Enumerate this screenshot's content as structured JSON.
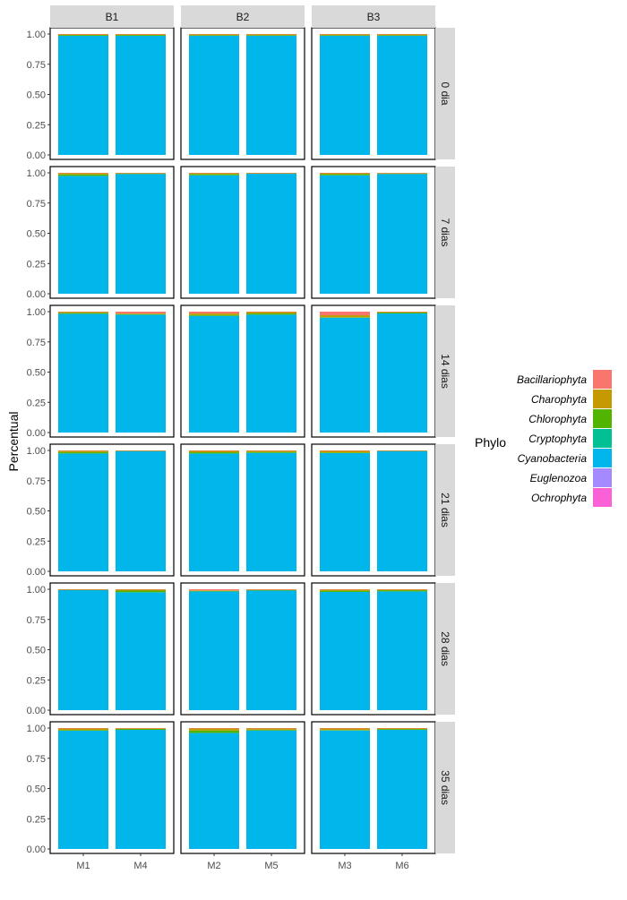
{
  "chart_data": {
    "type": "bar",
    "stacked": true,
    "xlabel": "",
    "ylabel": "Percentual",
    "ylim": [
      0,
      1
    ],
    "yticks": [
      "0.00",
      "0.25",
      "0.50",
      "0.75",
      "1.00"
    ],
    "column_facets": [
      {
        "label": "B1",
        "categories": [
          "M1",
          "M4"
        ]
      },
      {
        "label": "B2",
        "categories": [
          "M2",
          "M5"
        ]
      },
      {
        "label": "B3",
        "categories": [
          "M3",
          "M6"
        ]
      }
    ],
    "row_facets": [
      "0 dia",
      "7 dias",
      "14 dias",
      "21 dias",
      "28 dias",
      "35 dias"
    ],
    "legend": {
      "title": "Phylo",
      "position": "right",
      "entries": [
        {
          "name": "Bacillariophyta",
          "color": "#F8766D"
        },
        {
          "name": "Charophyta",
          "color": "#C49A00"
        },
        {
          "name": "Chlorophyta",
          "color": "#53B400"
        },
        {
          "name": "Cryptophyta",
          "color": "#00C094"
        },
        {
          "name": "Cyanobacteria",
          "color": "#00B6EB"
        },
        {
          "name": "Euglenozoa",
          "color": "#A58AFF"
        },
        {
          "name": "Ochrophyta",
          "color": "#FB61D7"
        }
      ]
    },
    "series_order": [
      "Cyanobacteria",
      "Chlorophyta",
      "Charophyta",
      "Bacillariophyta"
    ],
    "bars": [
      {
        "row": "0 dia",
        "col": "B1",
        "category": "M1",
        "values": {
          "Cyanobacteria": 0.985,
          "Chlorophyta": 0.007,
          "Charophyta": 0.005,
          "Bacillariophyta": 0.003
        }
      },
      {
        "row": "0 dia",
        "col": "B1",
        "category": "M4",
        "values": {
          "Cyanobacteria": 0.985,
          "Chlorophyta": 0.007,
          "Charophyta": 0.005,
          "Bacillariophyta": 0.003
        }
      },
      {
        "row": "0 dia",
        "col": "B2",
        "category": "M2",
        "values": {
          "Cyanobacteria": 0.985,
          "Chlorophyta": 0.006,
          "Charophyta": 0.006,
          "Bacillariophyta": 0.003
        }
      },
      {
        "row": "0 dia",
        "col": "B2",
        "category": "M5",
        "values": {
          "Cyanobacteria": 0.985,
          "Chlorophyta": 0.006,
          "Charophyta": 0.006,
          "Bacillariophyta": 0.003
        }
      },
      {
        "row": "0 dia",
        "col": "B3",
        "category": "M3",
        "values": {
          "Cyanobacteria": 0.985,
          "Chlorophyta": 0.006,
          "Charophyta": 0.006,
          "Bacillariophyta": 0.003
        }
      },
      {
        "row": "0 dia",
        "col": "B3",
        "category": "M6",
        "values": {
          "Cyanobacteria": 0.985,
          "Chlorophyta": 0.006,
          "Charophyta": 0.006,
          "Bacillariophyta": 0.003
        }
      },
      {
        "row": "7 dias",
        "col": "B1",
        "category": "M1",
        "values": {
          "Cyanobacteria": 0.975,
          "Chlorophyta": 0.012,
          "Charophyta": 0.01,
          "Bacillariophyta": 0.003
        }
      },
      {
        "row": "7 dias",
        "col": "B1",
        "category": "M4",
        "values": {
          "Cyanobacteria": 0.99,
          "Chlorophyta": 0.006,
          "Charophyta": 0.002,
          "Bacillariophyta": 0.002
        }
      },
      {
        "row": "7 dias",
        "col": "B2",
        "category": "M2",
        "values": {
          "Cyanobacteria": 0.98,
          "Chlorophyta": 0.01,
          "Charophyta": 0.007,
          "Bacillariophyta": 0.003
        }
      },
      {
        "row": "7 dias",
        "col": "B2",
        "category": "M5",
        "values": {
          "Cyanobacteria": 0.992,
          "Chlorophyta": 0.004,
          "Charophyta": 0.002,
          "Bacillariophyta": 0.002
        }
      },
      {
        "row": "7 dias",
        "col": "B3",
        "category": "M3",
        "values": {
          "Cyanobacteria": 0.98,
          "Chlorophyta": 0.009,
          "Charophyta": 0.008,
          "Bacillariophyta": 0.003
        }
      },
      {
        "row": "7 dias",
        "col": "B3",
        "category": "M6",
        "values": {
          "Cyanobacteria": 0.99,
          "Chlorophyta": 0.005,
          "Charophyta": 0.003,
          "Bacillariophyta": 0.002
        }
      },
      {
        "row": "14 dias",
        "col": "B1",
        "category": "M1",
        "values": {
          "Cyanobacteria": 0.982,
          "Chlorophyta": 0.008,
          "Charophyta": 0.007,
          "Bacillariophyta": 0.003
        }
      },
      {
        "row": "14 dias",
        "col": "B1",
        "category": "M4",
        "values": {
          "Cyanobacteria": 0.975,
          "Chlorophyta": 0.004,
          "Charophyta": 0.006,
          "Bacillariophyta": 0.015
        }
      },
      {
        "row": "14 dias",
        "col": "B2",
        "category": "M2",
        "values": {
          "Cyanobacteria": 0.965,
          "Chlorophyta": 0.008,
          "Charophyta": 0.012,
          "Bacillariophyta": 0.015
        }
      },
      {
        "row": "14 dias",
        "col": "B2",
        "category": "M5",
        "values": {
          "Cyanobacteria": 0.975,
          "Chlorophyta": 0.01,
          "Charophyta": 0.012,
          "Bacillariophyta": 0.003
        }
      },
      {
        "row": "14 dias",
        "col": "B3",
        "category": "M3",
        "values": {
          "Cyanobacteria": 0.95,
          "Chlorophyta": 0.004,
          "Charophyta": 0.016,
          "Bacillariophyta": 0.03
        }
      },
      {
        "row": "14 dias",
        "col": "B3",
        "category": "M6",
        "values": {
          "Cyanobacteria": 0.985,
          "Chlorophyta": 0.008,
          "Charophyta": 0.005,
          "Bacillariophyta": 0.002
        }
      },
      {
        "row": "21 dias",
        "col": "B1",
        "category": "M1",
        "values": {
          "Cyanobacteria": 0.975,
          "Chlorophyta": 0.012,
          "Charophyta": 0.01,
          "Bacillariophyta": 0.003
        }
      },
      {
        "row": "21 dias",
        "col": "B1",
        "category": "M4",
        "values": {
          "Cyanobacteria": 0.995,
          "Chlorophyta": 0.002,
          "Charophyta": 0.002,
          "Bacillariophyta": 0.001
        }
      },
      {
        "row": "21 dias",
        "col": "B2",
        "category": "M2",
        "values": {
          "Cyanobacteria": 0.975,
          "Chlorophyta": 0.01,
          "Charophyta": 0.012,
          "Bacillariophyta": 0.003
        }
      },
      {
        "row": "21 dias",
        "col": "B2",
        "category": "M5",
        "values": {
          "Cyanobacteria": 0.98,
          "Chlorophyta": 0.008,
          "Charophyta": 0.01,
          "Bacillariophyta": 0.002
        }
      },
      {
        "row": "21 dias",
        "col": "B3",
        "category": "M3",
        "values": {
          "Cyanobacteria": 0.978,
          "Chlorophyta": 0.005,
          "Charophyta": 0.014,
          "Bacillariophyta": 0.003
        }
      },
      {
        "row": "21 dias",
        "col": "B3",
        "category": "M6",
        "values": {
          "Cyanobacteria": 0.995,
          "Chlorophyta": 0.002,
          "Charophyta": 0.002,
          "Bacillariophyta": 0.001
        }
      },
      {
        "row": "28 dias",
        "col": "B1",
        "category": "M1",
        "values": {
          "Cyanobacteria": 0.994,
          "Chlorophyta": 0.002,
          "Charophyta": 0.002,
          "Bacillariophyta": 0.002
        }
      },
      {
        "row": "28 dias",
        "col": "B1",
        "category": "M4",
        "values": {
          "Cyanobacteria": 0.975,
          "Chlorophyta": 0.014,
          "Charophyta": 0.008,
          "Bacillariophyta": 0.003
        }
      },
      {
        "row": "28 dias",
        "col": "B2",
        "category": "M2",
        "values": {
          "Cyanobacteria": 0.982,
          "Chlorophyta": 0.004,
          "Charophyta": 0.005,
          "Bacillariophyta": 0.009
        }
      },
      {
        "row": "28 dias",
        "col": "B2",
        "category": "M5",
        "values": {
          "Cyanobacteria": 0.99,
          "Chlorophyta": 0.003,
          "Charophyta": 0.005,
          "Bacillariophyta": 0.002
        }
      },
      {
        "row": "28 dias",
        "col": "B3",
        "category": "M3",
        "values": {
          "Cyanobacteria": 0.978,
          "Chlorophyta": 0.01,
          "Charophyta": 0.009,
          "Bacillariophyta": 0.003
        }
      },
      {
        "row": "28 dias",
        "col": "B3",
        "category": "M6",
        "values": {
          "Cyanobacteria": 0.982,
          "Chlorophyta": 0.01,
          "Charophyta": 0.006,
          "Bacillariophyta": 0.002
        }
      },
      {
        "row": "35 dias",
        "col": "B1",
        "category": "M1",
        "values": {
          "Cyanobacteria": 0.978,
          "Chlorophyta": 0.006,
          "Charophyta": 0.013,
          "Bacillariophyta": 0.003
        }
      },
      {
        "row": "35 dias",
        "col": "B1",
        "category": "M4",
        "values": {
          "Cyanobacteria": 0.985,
          "Chlorophyta": 0.008,
          "Charophyta": 0.005,
          "Bacillariophyta": 0.002
        }
      },
      {
        "row": "35 dias",
        "col": "B2",
        "category": "M2",
        "values": {
          "Cyanobacteria": 0.96,
          "Chlorophyta": 0.02,
          "Charophyta": 0.017,
          "Bacillariophyta": 0.003
        }
      },
      {
        "row": "35 dias",
        "col": "B2",
        "category": "M5",
        "values": {
          "Cyanobacteria": 0.98,
          "Chlorophyta": 0.006,
          "Charophyta": 0.012,
          "Bacillariophyta": 0.002
        }
      },
      {
        "row": "35 dias",
        "col": "B3",
        "category": "M3",
        "values": {
          "Cyanobacteria": 0.98,
          "Chlorophyta": 0.004,
          "Charophyta": 0.013,
          "Bacillariophyta": 0.003
        }
      },
      {
        "row": "35 dias",
        "col": "B3",
        "category": "M6",
        "values": {
          "Cyanobacteria": 0.985,
          "Chlorophyta": 0.007,
          "Charophyta": 0.006,
          "Bacillariophyta": 0.002
        }
      }
    ]
  }
}
